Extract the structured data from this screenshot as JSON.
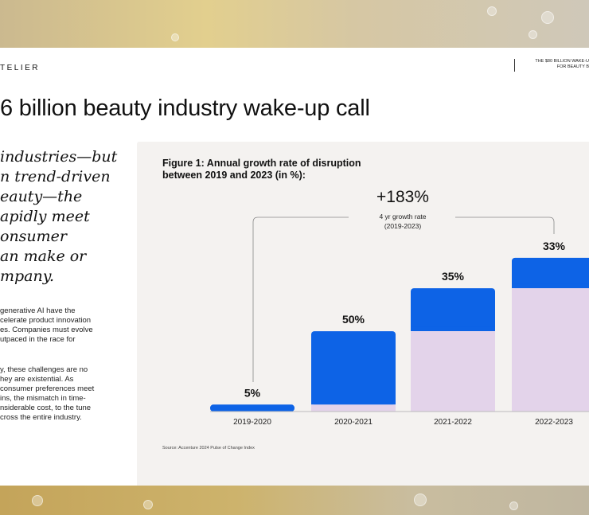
{
  "header": {
    "brand": "TELIER",
    "top_right_line1": "THE $80 BILLION WAKE-U",
    "top_right_line2": "FOR BEAUTY B"
  },
  "article": {
    "headline": "6 billion beauty industry wake-up call",
    "pull_quote_lines": [
      "industries—but",
      "n trend-driven",
      "eauty—the",
      "apidly meet",
      "onsumer",
      "an make or",
      "mpany."
    ],
    "body1_lines": [
      "generative AI have the",
      "celerate product innovation",
      "es. Companies must evolve",
      "utpaced in the race for"
    ],
    "body2_lines": [
      "y, these challenges are no",
      "hey are existential. As",
      "consumer preferences meet",
      "ins, the mismatch in time-",
      "nsiderable cost, to the tune",
      "cross the entire industry."
    ]
  },
  "figure": {
    "title_line1": "Figure 1: Annual growth rate of disruption",
    "title_line2": "between 2019 and 2023 (in %):",
    "source": "Source: Accenture 2024 Pulse of Change Index"
  },
  "chart_data": {
    "type": "bar",
    "title": "Figure 1: Annual growth rate of disruption between 2019 and 2023 (in %):",
    "categories": [
      "2019-2020",
      "2020-2021",
      "2021-2022",
      "2022-2023"
    ],
    "values": [
      5,
      50,
      35,
      33
    ],
    "value_labels": [
      "5%",
      "50%",
      "35%",
      "33%"
    ],
    "index_levels": [
      5,
      58,
      89,
      111
    ],
    "total_growth_label": "+183%",
    "total_growth_caption_line1": "4 yr growth rate",
    "total_growth_caption_line2": "(2019-2023)",
    "colors": {
      "growth": "#0d63e6",
      "base": "#e3d3ea",
      "axis": "#888888"
    }
  }
}
